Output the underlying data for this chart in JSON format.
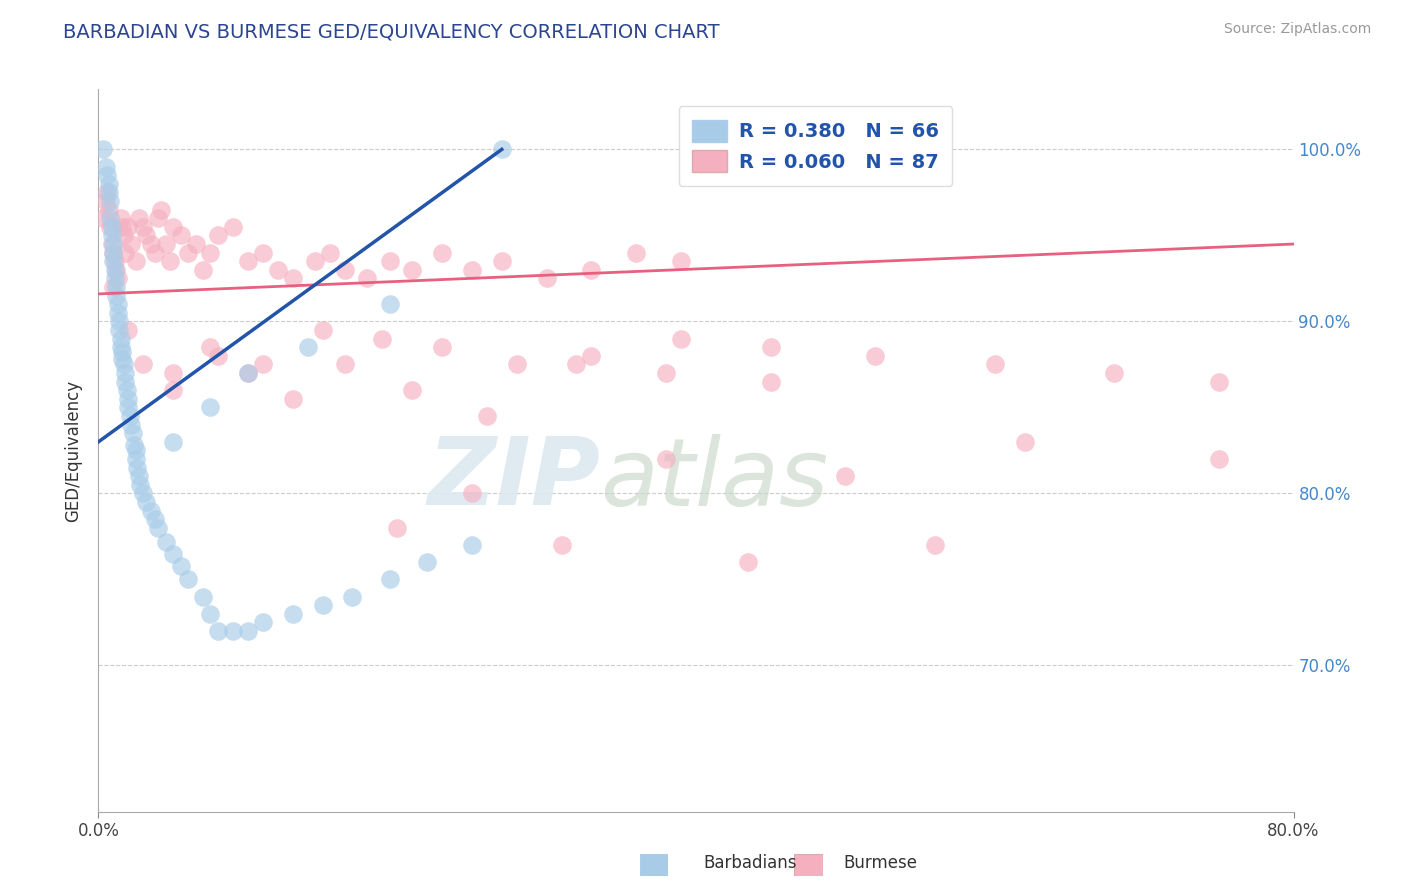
{
  "title": "BARBADIAN VS BURMESE GED/EQUIVALENCY CORRELATION CHART",
  "source": "Source: ZipAtlas.com",
  "ylabel": "GED/Equivalency",
  "ytick_labels": [
    "70.0%",
    "80.0%",
    "90.0%",
    "100.0%"
  ],
  "ytick_values": [
    0.7,
    0.8,
    0.9,
    1.0
  ],
  "xlim": [
    0.0,
    0.8
  ],
  "ylim": [
    0.615,
    1.035
  ],
  "xtick_labels": [
    "0.0%",
    "80.0%"
  ],
  "xtick_values": [
    0.0,
    0.8
  ],
  "legend_r1": "R = 0.380   N = 66",
  "legend_r2": "R = 0.060   N = 87",
  "barbadian_color": "#a8cce8",
  "burmese_color": "#f5b0c0",
  "regression_blue": "#2255aa",
  "regression_pink": "#e86080",
  "title_color": "#2b4590",
  "title_fontsize": 14,
  "source_color": "#999999",
  "watermark_color": "#dce8f0",
  "legend_box_color": "#a8cce8",
  "legend_pink_color": "#f5b0c0",
  "axis_label_color": "#333333",
  "right_tick_color": "#4488cc",
  "bottom_label_color": "#555555",
  "blue_line_x0": 0.0,
  "blue_line_y0": 0.83,
  "blue_line_x1": 0.27,
  "blue_line_y1": 1.0,
  "pink_line_x0": 0.0,
  "pink_line_y0": 0.916,
  "pink_line_x1": 0.8,
  "pink_line_y1": 0.945,
  "barb_x": [
    0.003,
    0.005,
    0.006,
    0.007,
    0.007,
    0.008,
    0.008,
    0.009,
    0.009,
    0.01,
    0.01,
    0.01,
    0.011,
    0.011,
    0.012,
    0.012,
    0.013,
    0.013,
    0.014,
    0.014,
    0.015,
    0.015,
    0.016,
    0.016,
    0.017,
    0.018,
    0.018,
    0.019,
    0.02,
    0.02,
    0.021,
    0.022,
    0.023,
    0.024,
    0.025,
    0.025,
    0.026,
    0.027,
    0.028,
    0.03,
    0.032,
    0.035,
    0.038,
    0.04,
    0.045,
    0.05,
    0.055,
    0.06,
    0.07,
    0.075,
    0.08,
    0.09,
    0.1,
    0.11,
    0.13,
    0.15,
    0.17,
    0.195,
    0.22,
    0.25,
    0.05,
    0.075,
    0.1,
    0.14,
    0.195,
    0.27
  ],
  "barb_y": [
    1.0,
    0.99,
    0.985,
    0.98,
    0.975,
    0.97,
    0.96,
    0.955,
    0.95,
    0.945,
    0.94,
    0.935,
    0.93,
    0.925,
    0.92,
    0.915,
    0.91,
    0.905,
    0.9,
    0.895,
    0.89,
    0.885,
    0.882,
    0.878,
    0.875,
    0.87,
    0.865,
    0.86,
    0.855,
    0.85,
    0.845,
    0.84,
    0.835,
    0.828,
    0.825,
    0.82,
    0.815,
    0.81,
    0.805,
    0.8,
    0.795,
    0.79,
    0.785,
    0.78,
    0.772,
    0.765,
    0.758,
    0.75,
    0.74,
    0.73,
    0.72,
    0.72,
    0.72,
    0.725,
    0.73,
    0.735,
    0.74,
    0.75,
    0.76,
    0.77,
    0.83,
    0.85,
    0.87,
    0.885,
    0.91,
    1.0
  ],
  "burm_x": [
    0.003,
    0.005,
    0.006,
    0.007,
    0.008,
    0.009,
    0.01,
    0.011,
    0.012,
    0.013,
    0.015,
    0.016,
    0.017,
    0.018,
    0.02,
    0.022,
    0.025,
    0.027,
    0.03,
    0.032,
    0.035,
    0.038,
    0.04,
    0.042,
    0.045,
    0.048,
    0.05,
    0.055,
    0.06,
    0.065,
    0.07,
    0.075,
    0.08,
    0.09,
    0.1,
    0.11,
    0.12,
    0.13,
    0.145,
    0.155,
    0.165,
    0.18,
    0.195,
    0.21,
    0.23,
    0.25,
    0.27,
    0.3,
    0.33,
    0.36,
    0.39,
    0.05,
    0.08,
    0.11,
    0.15,
    0.19,
    0.23,
    0.28,
    0.33,
    0.39,
    0.45,
    0.01,
    0.02,
    0.03,
    0.05,
    0.075,
    0.1,
    0.13,
    0.165,
    0.21,
    0.26,
    0.32,
    0.38,
    0.45,
    0.52,
    0.6,
    0.68,
    0.75,
    0.25,
    0.38,
    0.5,
    0.62,
    0.75,
    0.2,
    0.31,
    0.435,
    0.56
  ],
  "burm_y": [
    0.96,
    0.97,
    0.975,
    0.965,
    0.955,
    0.945,
    0.94,
    0.935,
    0.93,
    0.925,
    0.96,
    0.955,
    0.95,
    0.94,
    0.955,
    0.945,
    0.935,
    0.96,
    0.955,
    0.95,
    0.945,
    0.94,
    0.96,
    0.965,
    0.945,
    0.935,
    0.955,
    0.95,
    0.94,
    0.945,
    0.93,
    0.94,
    0.95,
    0.955,
    0.935,
    0.94,
    0.93,
    0.925,
    0.935,
    0.94,
    0.93,
    0.925,
    0.935,
    0.93,
    0.94,
    0.93,
    0.935,
    0.925,
    0.93,
    0.94,
    0.935,
    0.87,
    0.88,
    0.875,
    0.895,
    0.89,
    0.885,
    0.875,
    0.88,
    0.89,
    0.885,
    0.92,
    0.895,
    0.875,
    0.86,
    0.885,
    0.87,
    0.855,
    0.875,
    0.86,
    0.845,
    0.875,
    0.87,
    0.865,
    0.88,
    0.875,
    0.87,
    0.865,
    0.8,
    0.82,
    0.81,
    0.83,
    0.82,
    0.78,
    0.77,
    0.76,
    0.77
  ]
}
